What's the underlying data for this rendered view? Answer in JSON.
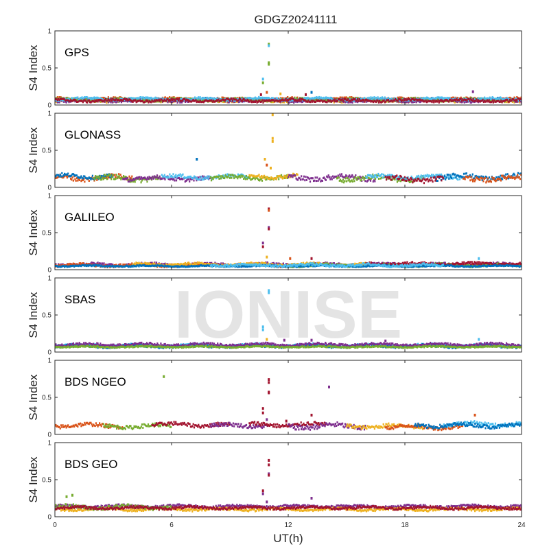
{
  "figure": {
    "title": "GDGZ20241111",
    "watermark": "IONISE"
  },
  "chart_data": {
    "type": "scatter",
    "title": "GDGZ20241111",
    "xlabel": "UT(h)",
    "ylabel": "S4 Index",
    "xlim": [
      0,
      24
    ],
    "ylim": [
      0,
      1
    ],
    "xticks": [
      0,
      6,
      12,
      18,
      24
    ],
    "yticks": [
      0,
      0.5,
      1
    ],
    "ytick_labels": [
      "0",
      "0.5",
      "1"
    ],
    "grid": false,
    "colors": [
      "#0072BD",
      "#D95319",
      "#EDB120",
      "#7E2F8E",
      "#77AC30",
      "#4DBEEE",
      "#A2142F"
    ],
    "panels": [
      {
        "name": "GPS",
        "bands": [
          {
            "x0": 0,
            "x1": 24,
            "base": 0.07,
            "amp": 0.02,
            "color": 0
          },
          {
            "x0": 0,
            "x1": 24,
            "base": 0.06,
            "amp": 0.02,
            "color": 2
          },
          {
            "x0": 0,
            "x1": 24,
            "base": 0.08,
            "amp": 0.02,
            "color": 1
          },
          {
            "x0": 0,
            "x1": 24,
            "base": 0.06,
            "amp": 0.02,
            "color": 3
          },
          {
            "x0": 0,
            "x1": 24,
            "base": 0.07,
            "amp": 0.02,
            "color": 4
          },
          {
            "x0": 0,
            "x1": 24,
            "base": 0.08,
            "amp": 0.02,
            "color": 5
          },
          {
            "x0": 0,
            "x1": 24,
            "base": 0.06,
            "amp": 0.02,
            "color": 6
          }
        ],
        "spikes": [
          {
            "x": 11.0,
            "y": 0.82,
            "color": 4
          },
          {
            "x": 11.0,
            "y": 0.8,
            "color": 5
          },
          {
            "x": 11.0,
            "y": 0.57,
            "color": 4
          },
          {
            "x": 11.0,
            "y": 0.55,
            "color": 4
          },
          {
            "x": 10.7,
            "y": 0.35,
            "color": 5
          },
          {
            "x": 10.7,
            "y": 0.3,
            "color": 4
          },
          {
            "x": 10.9,
            "y": 0.17,
            "color": 1
          },
          {
            "x": 10.6,
            "y": 0.14,
            "color": 6
          },
          {
            "x": 11.6,
            "y": 0.15,
            "color": 2
          },
          {
            "x": 13.2,
            "y": 0.17,
            "color": 0
          },
          {
            "x": 12.9,
            "y": 0.14,
            "color": 6
          },
          {
            "x": 21.5,
            "y": 0.18,
            "color": 3
          }
        ]
      },
      {
        "name": "GLONASS",
        "bands": [
          {
            "x0": 0,
            "x1": 4,
            "base": 0.13,
            "amp": 0.04,
            "color": 1
          },
          {
            "x0": 0,
            "x1": 3,
            "base": 0.15,
            "amp": 0.03,
            "color": 0
          },
          {
            "x0": 2,
            "x1": 5.5,
            "base": 0.12,
            "amp": 0.04,
            "color": 4
          },
          {
            "x0": 3.5,
            "x1": 8,
            "base": 0.12,
            "amp": 0.03,
            "color": 3
          },
          {
            "x0": 5.5,
            "x1": 10,
            "base": 0.14,
            "amp": 0.03,
            "color": 5
          },
          {
            "x0": 8,
            "x1": 12,
            "base": 0.13,
            "amp": 0.03,
            "color": 4
          },
          {
            "x0": 10,
            "x1": 12.5,
            "base": 0.15,
            "amp": 0.03,
            "color": 2
          },
          {
            "x0": 12,
            "x1": 16.5,
            "base": 0.13,
            "amp": 0.04,
            "color": 3
          },
          {
            "x0": 14.5,
            "x1": 19,
            "base": 0.12,
            "amp": 0.04,
            "color": 4
          },
          {
            "x0": 16,
            "x1": 21,
            "base": 0.14,
            "amp": 0.03,
            "color": 5
          },
          {
            "x0": 19.5,
            "x1": 24,
            "base": 0.14,
            "amp": 0.04,
            "color": 0
          },
          {
            "x0": 21,
            "x1": 24,
            "base": 0.12,
            "amp": 0.04,
            "color": 1
          },
          {
            "x0": 17,
            "x1": 20,
            "base": 0.11,
            "amp": 0.04,
            "color": 6
          }
        ],
        "spikes": [
          {
            "x": 11.2,
            "y": 0.98,
            "color": 2
          },
          {
            "x": 11.2,
            "y": 0.66,
            "color": 2
          },
          {
            "x": 11.2,
            "y": 0.62,
            "color": 2
          },
          {
            "x": 10.8,
            "y": 0.38,
            "color": 2
          },
          {
            "x": 7.3,
            "y": 0.38,
            "color": 0
          },
          {
            "x": 10.9,
            "y": 0.3,
            "color": 1
          },
          {
            "x": 11.1,
            "y": 0.26,
            "color": 2
          }
        ]
      },
      {
        "name": "GALILEO",
        "bands": [
          {
            "x0": 0,
            "x1": 24,
            "base": 0.07,
            "amp": 0.02,
            "color": 3
          },
          {
            "x0": 0,
            "x1": 12,
            "base": 0.06,
            "amp": 0.02,
            "color": 1
          },
          {
            "x0": 4,
            "x1": 16,
            "base": 0.07,
            "amp": 0.02,
            "color": 2
          },
          {
            "x0": 12,
            "x1": 24,
            "base": 0.06,
            "amp": 0.02,
            "color": 4
          },
          {
            "x0": 16,
            "x1": 24,
            "base": 0.08,
            "amp": 0.02,
            "color": 6
          },
          {
            "x0": 0,
            "x1": 24,
            "base": 0.05,
            "amp": 0.01,
            "color": 0
          },
          {
            "x0": 8,
            "x1": 20,
            "base": 0.06,
            "amp": 0.02,
            "color": 5
          }
        ],
        "spikes": [
          {
            "x": 11.0,
            "y": 0.82,
            "color": 6
          },
          {
            "x": 11.0,
            "y": 0.8,
            "color": 1
          },
          {
            "x": 11.0,
            "y": 0.57,
            "color": 3
          },
          {
            "x": 11.0,
            "y": 0.55,
            "color": 6
          },
          {
            "x": 10.7,
            "y": 0.36,
            "color": 3
          },
          {
            "x": 10.7,
            "y": 0.31,
            "color": 6
          },
          {
            "x": 10.9,
            "y": 0.17,
            "color": 2
          },
          {
            "x": 12.1,
            "y": 0.15,
            "color": 1
          },
          {
            "x": 13.2,
            "y": 0.15,
            "color": 6
          },
          {
            "x": 21.8,
            "y": 0.15,
            "color": 5
          }
        ]
      },
      {
        "name": "SBAS",
        "bands": [
          {
            "x0": 0,
            "x1": 24,
            "base": 0.09,
            "amp": 0.02,
            "color": 5
          },
          {
            "x0": 0,
            "x1": 24,
            "base": 0.08,
            "amp": 0.02,
            "color": 0
          },
          {
            "x0": 0,
            "x1": 24,
            "base": 0.1,
            "amp": 0.02,
            "color": 3
          },
          {
            "x0": 0,
            "x1": 24,
            "base": 0.07,
            "amp": 0.01,
            "color": 4
          }
        ],
        "spikes": [
          {
            "x": 11.0,
            "y": 0.83,
            "color": 5
          },
          {
            "x": 11.0,
            "y": 0.8,
            "color": 5
          },
          {
            "x": 10.7,
            "y": 0.34,
            "color": 5
          },
          {
            "x": 10.7,
            "y": 0.3,
            "color": 5
          },
          {
            "x": 10.9,
            "y": 0.17,
            "color": 2
          },
          {
            "x": 11.8,
            "y": 0.16,
            "color": 3
          },
          {
            "x": 13.2,
            "y": 0.16,
            "color": 3
          },
          {
            "x": 17.0,
            "y": 0.15,
            "color": 3
          },
          {
            "x": 21.8,
            "y": 0.17,
            "color": 5
          }
        ]
      },
      {
        "name": "BDS NGEO",
        "bands": [
          {
            "x0": 0,
            "x1": 3.5,
            "base": 0.12,
            "amp": 0.03,
            "color": 1
          },
          {
            "x0": 2.5,
            "x1": 6,
            "base": 0.11,
            "amp": 0.03,
            "color": 4
          },
          {
            "x0": 5,
            "x1": 9,
            "base": 0.13,
            "amp": 0.03,
            "color": 6
          },
          {
            "x0": 8,
            "x1": 11,
            "base": 0.12,
            "amp": 0.03,
            "color": 3
          },
          {
            "x0": 10,
            "x1": 14,
            "base": 0.13,
            "amp": 0.03,
            "color": 6
          },
          {
            "x0": 12,
            "x1": 16,
            "base": 0.11,
            "amp": 0.04,
            "color": 3
          },
          {
            "x0": 15,
            "x1": 19,
            "base": 0.11,
            "amp": 0.03,
            "color": 2
          },
          {
            "x0": 17,
            "x1": 21,
            "base": 0.1,
            "amp": 0.03,
            "color": 1
          },
          {
            "x0": 20,
            "x1": 24,
            "base": 0.14,
            "amp": 0.03,
            "color": 5
          },
          {
            "x0": 18.5,
            "x1": 24,
            "base": 0.12,
            "amp": 0.03,
            "color": 0
          }
        ],
        "spikes": [
          {
            "x": 5.6,
            "y": 0.78,
            "color": 4
          },
          {
            "x": 11.0,
            "y": 0.74,
            "color": 6
          },
          {
            "x": 11.0,
            "y": 0.7,
            "color": 6
          },
          {
            "x": 11.0,
            "y": 0.57,
            "color": 6
          },
          {
            "x": 11.0,
            "y": 0.56,
            "color": 6
          },
          {
            "x": 14.1,
            "y": 0.64,
            "color": 3
          },
          {
            "x": 10.7,
            "y": 0.35,
            "color": 6
          },
          {
            "x": 10.7,
            "y": 0.29,
            "color": 6
          },
          {
            "x": 13.2,
            "y": 0.26,
            "color": 6
          },
          {
            "x": 21.6,
            "y": 0.26,
            "color": 1
          },
          {
            "x": 10.9,
            "y": 0.2,
            "color": 3
          },
          {
            "x": 11.9,
            "y": 0.18,
            "color": 6
          }
        ]
      },
      {
        "name": "BDS GEO",
        "bands": [
          {
            "x0": 0,
            "x1": 24,
            "base": 0.14,
            "amp": 0.02,
            "color": 3
          },
          {
            "x0": 0,
            "x1": 24,
            "base": 0.1,
            "amp": 0.02,
            "color": 2
          },
          {
            "x0": 0,
            "x1": 6,
            "base": 0.13,
            "amp": 0.03,
            "color": 4
          },
          {
            "x0": 0,
            "x1": 24,
            "base": 0.12,
            "amp": 0.02,
            "color": 6
          }
        ],
        "spikes": [
          {
            "x": 0.6,
            "y": 0.27,
            "color": 4
          },
          {
            "x": 0.9,
            "y": 0.29,
            "color": 4
          },
          {
            "x": 11.0,
            "y": 0.76,
            "color": 6
          },
          {
            "x": 11.0,
            "y": 0.7,
            "color": 6
          },
          {
            "x": 11.0,
            "y": 0.58,
            "color": 3
          },
          {
            "x": 11.0,
            "y": 0.56,
            "color": 6
          },
          {
            "x": 10.7,
            "y": 0.35,
            "color": 6
          },
          {
            "x": 10.7,
            "y": 0.31,
            "color": 3
          },
          {
            "x": 13.2,
            "y": 0.25,
            "color": 3
          },
          {
            "x": 10.9,
            "y": 0.2,
            "color": 3
          }
        ]
      }
    ]
  }
}
